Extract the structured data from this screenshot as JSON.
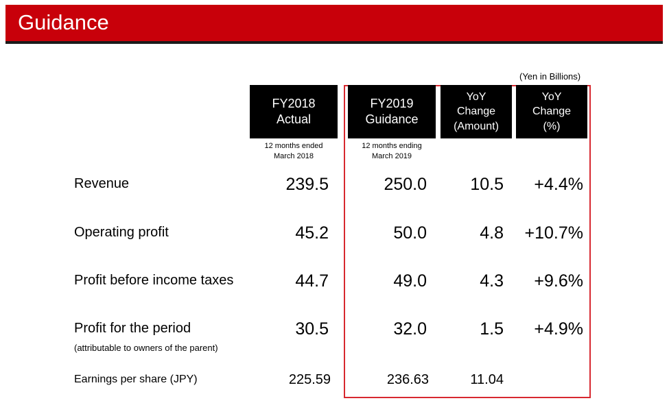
{
  "header": {
    "title": "Guidance"
  },
  "unit_note": "(Yen in Billions)",
  "columns": {
    "fy2018": {
      "line1": "FY2018",
      "line2": "Actual",
      "sub1": "12 months ended",
      "sub2": "March 2018"
    },
    "fy2019": {
      "line1": "FY2019",
      "line2": "Guidance",
      "sub1": "12 months ending",
      "sub2": "March 2019"
    },
    "yoy_amount": {
      "line1": "YoY",
      "line2": "Change",
      "line3": "(Amount)"
    },
    "yoy_pct": {
      "line1": "YoY",
      "line2": "Change",
      "line3": "(%)"
    }
  },
  "rows": [
    {
      "label": "Revenue",
      "fy2018": "239.5",
      "fy2019": "250.0",
      "yoy_amount": "10.5",
      "yoy_pct": "+4.4%"
    },
    {
      "label": "Operating profit",
      "fy2018": "45.2",
      "fy2019": "50.0",
      "yoy_amount": "4.8",
      "yoy_pct": "+10.7%"
    },
    {
      "label": "Profit before income taxes",
      "fy2018": "44.7",
      "fy2019": "49.0",
      "yoy_amount": "4.3",
      "yoy_pct": "+9.6%"
    },
    {
      "label": "Profit for the period",
      "note": "(attributable to owners of the parent)",
      "fy2018": "30.5",
      "fy2019": "32.0",
      "yoy_amount": "1.5",
      "yoy_pct": "+4.9%"
    },
    {
      "label": "Earnings per share (JPY)",
      "fy2018": "225.59",
      "fy2019": "236.63",
      "yoy_amount": "11.04",
      "yoy_pct": ""
    }
  ],
  "colors": {
    "title_bar": "#c8000a",
    "highlight_border": "#d7282f",
    "header_bg": "#000000"
  }
}
